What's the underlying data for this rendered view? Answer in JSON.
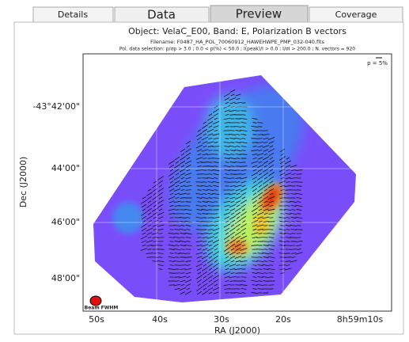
{
  "tabs": [
    "Details",
    "Data",
    "Preview",
    "Coverage"
  ],
  "plot": {
    "title": "Object: VelaC_E00, Band: E, Polarization B vectors",
    "filename": "Filename: F0487_HA_POL_70060912_HAWEHWPE_PMP_032-040.fits",
    "selection": "Pol. data selection: p/σp > 3.0 ; 0.0 < p(%) < 50.0 ; I(peak)/I > 0.0 ; I/σI > 200.0 ; N. vectors = 920",
    "scale_label": "p = 5%",
    "beam_label": "Beam FWHM",
    "x_label": "RA (J2000)",
    "y_label": "Dec (J2000)",
    "x_tick_labels": [
      "50s",
      "40s",
      "30s",
      "20s",
      "8h59m10s"
    ],
    "y_tick_labels": [
      "-43°42'00\"",
      "44'00\"",
      "46'00\"",
      "48'00\""
    ]
  }
}
